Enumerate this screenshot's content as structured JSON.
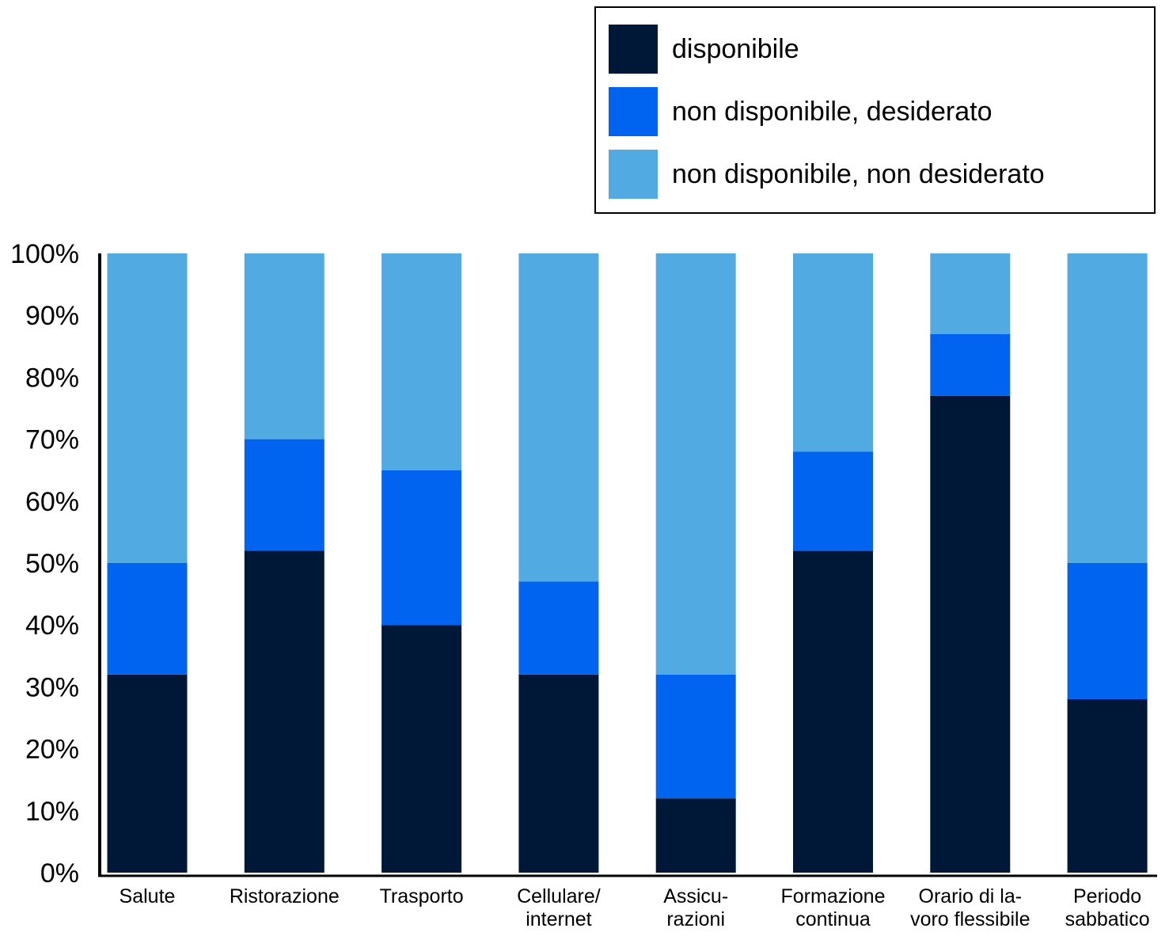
{
  "chart_data": {
    "type": "bar",
    "stacked": true,
    "categories": [
      [
        "Salute"
      ],
      [
        "Ristorazione"
      ],
      [
        "Trasporto"
      ],
      [
        "Cellulare/",
        "internet"
      ],
      [
        "Assicu-",
        "razioni"
      ],
      [
        "Formazione",
        "continua"
      ],
      [
        "Orario di la-",
        "voro flessibile"
      ],
      [
        "Periodo",
        "sabbatico"
      ]
    ],
    "series": [
      {
        "name": "disponibile",
        "color": "#001837",
        "values": [
          32,
          52,
          40,
          32,
          12,
          52,
          77,
          28
        ]
      },
      {
        "name": "non disponibile, desiderato",
        "color": "#0164F0",
        "values": [
          18,
          18,
          25,
          15,
          20,
          16,
          10,
          22
        ]
      },
      {
        "name": "non disponibile, non desiderato",
        "color": "#52AAE2",
        "values": [
          50,
          30,
          35,
          53,
          68,
          32,
          13,
          50
        ]
      }
    ],
    "yticks": [
      "0%",
      "10%",
      "20%",
      "30%",
      "40%",
      "50%",
      "60%",
      "70%",
      "80%",
      "90%",
      "100%"
    ],
    "ylim": [
      0,
      100
    ],
    "grid": false,
    "legend_position": "top-right"
  }
}
